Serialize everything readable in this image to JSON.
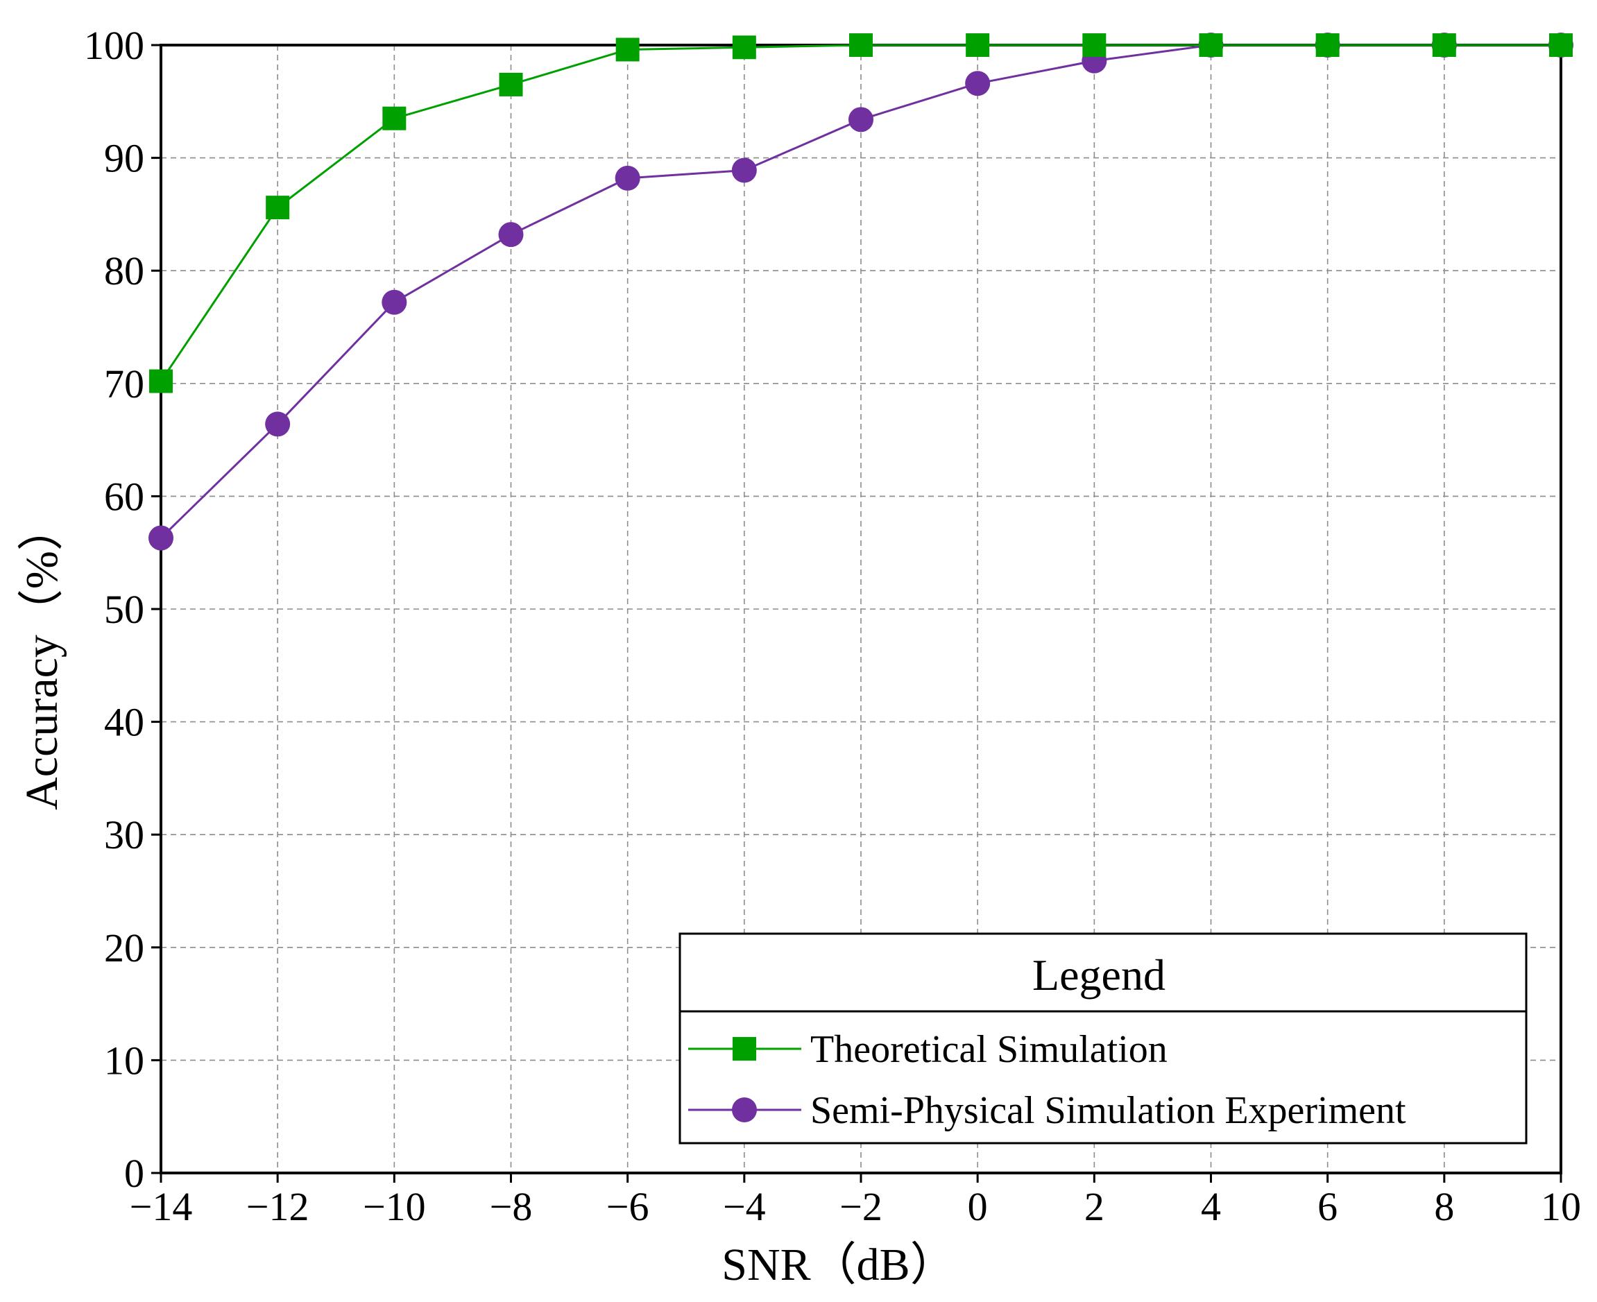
{
  "chart_data": {
    "type": "line",
    "title": "",
    "xlabel": "SNR（dB）",
    "ylabel": "Accuracy（%）",
    "xlim": [
      -14,
      10
    ],
    "ylim": [
      0,
      100
    ],
    "xticks": [
      -14,
      -12,
      -10,
      -8,
      -6,
      -4,
      -2,
      0,
      2,
      4,
      6,
      8,
      10
    ],
    "yticks": [
      0,
      10,
      20,
      30,
      40,
      50,
      60,
      70,
      80,
      90,
      100
    ],
    "xtick_labels": [
      "−14",
      "−12",
      "−10",
      "−8",
      "−6",
      "−4",
      "−2",
      "0",
      "2",
      "4",
      "6",
      "8",
      "10"
    ],
    "ytick_labels": [
      "0",
      "10",
      "20",
      "30",
      "40",
      "50",
      "60",
      "70",
      "80",
      "90",
      "100"
    ],
    "grid": true,
    "x": [
      -14,
      -12,
      -10,
      -8,
      -6,
      -4,
      -2,
      0,
      2,
      4,
      6,
      8,
      10
    ],
    "series": [
      {
        "name": "Theoretical Simulation",
        "color": "#00a000",
        "marker": "square",
        "values": [
          70.2,
          85.6,
          93.5,
          96.5,
          99.6,
          99.8,
          100,
          100,
          100,
          100,
          100,
          100,
          100
        ]
      },
      {
        "name": "Semi-Physical Simulation Experiment",
        "color": "#7030a0",
        "marker": "circle",
        "values": [
          56.3,
          66.4,
          77.2,
          83.2,
          88.2,
          88.9,
          93.4,
          96.6,
          98.6,
          100,
          100,
          100,
          100
        ]
      }
    ],
    "legend": {
      "title": "Legend",
      "position": "bottom-right"
    }
  }
}
